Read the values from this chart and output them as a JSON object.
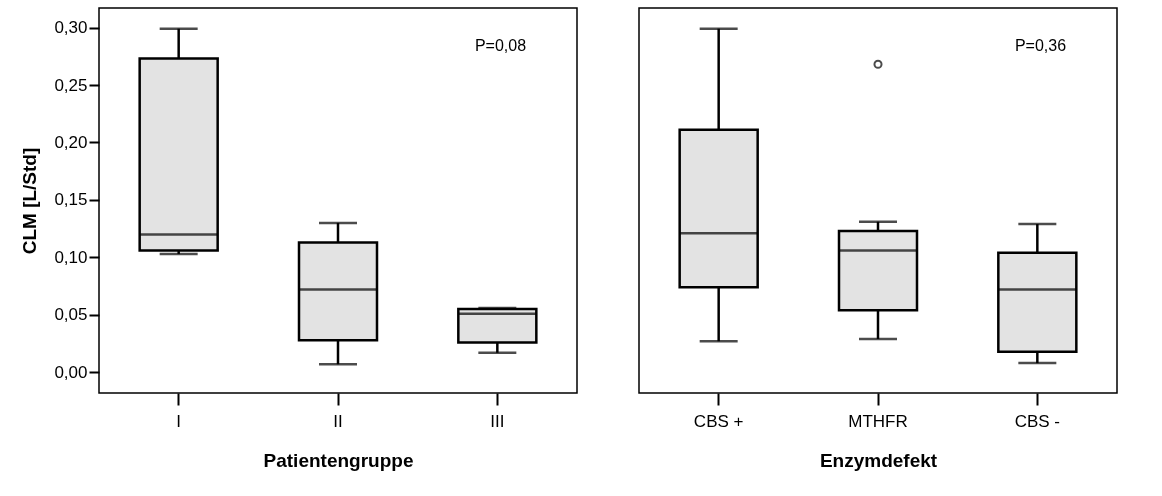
{
  "chart_data": [
    {
      "type": "box",
      "xlabel": "Patientengruppe",
      "ylabel": "CLM [L/Std]",
      "categories": [
        "I",
        "II",
        "III"
      ],
      "boxes": [
        {
          "low": 0.103,
          "q1": 0.106,
          "median": 0.12,
          "q3": 0.273,
          "high": 0.299
        },
        {
          "low": 0.007,
          "q1": 0.028,
          "median": 0.072,
          "q3": 0.113,
          "high": 0.13
        },
        {
          "low": 0.017,
          "q1": 0.026,
          "median": 0.051,
          "q3": 0.055,
          "high": 0.056
        }
      ],
      "color": "#e3e3e3",
      "ylim": [
        -0.018,
        0.317
      ],
      "yticks": [
        {
          "value": 0.0,
          "label": "0,00"
        },
        {
          "value": 0.05,
          "label": "0,05"
        },
        {
          "value": 0.1,
          "label": "0,10"
        },
        {
          "value": 0.15,
          "label": "0,15"
        },
        {
          "value": 0.2,
          "label": "0,20"
        },
        {
          "value": 0.25,
          "label": "0,25"
        },
        {
          "value": 0.3,
          "label": "0,30"
        }
      ],
      "annotations": [
        "P=0,08"
      ],
      "grid": false
    },
    {
      "type": "box",
      "xlabel": "Enzymdefekt",
      "categories": [
        "CBS +",
        "MTHFR",
        "CBS -"
      ],
      "boxes": [
        {
          "low": 0.027,
          "q1": 0.074,
          "median": 0.121,
          "q3": 0.211,
          "high": 0.299
        },
        {
          "low": 0.029,
          "q1": 0.054,
          "median": 0.106,
          "q3": 0.123,
          "high": 0.131,
          "outliers": [
            0.268
          ]
        },
        {
          "low": 0.008,
          "q1": 0.018,
          "median": 0.072,
          "q3": 0.104,
          "high": 0.129
        }
      ],
      "color": "#e3e3e3",
      "ylim": [
        -0.018,
        0.317
      ],
      "tick_labels": "x",
      "annotations": [
        "P=0,36"
      ],
      "grid": false
    }
  ]
}
